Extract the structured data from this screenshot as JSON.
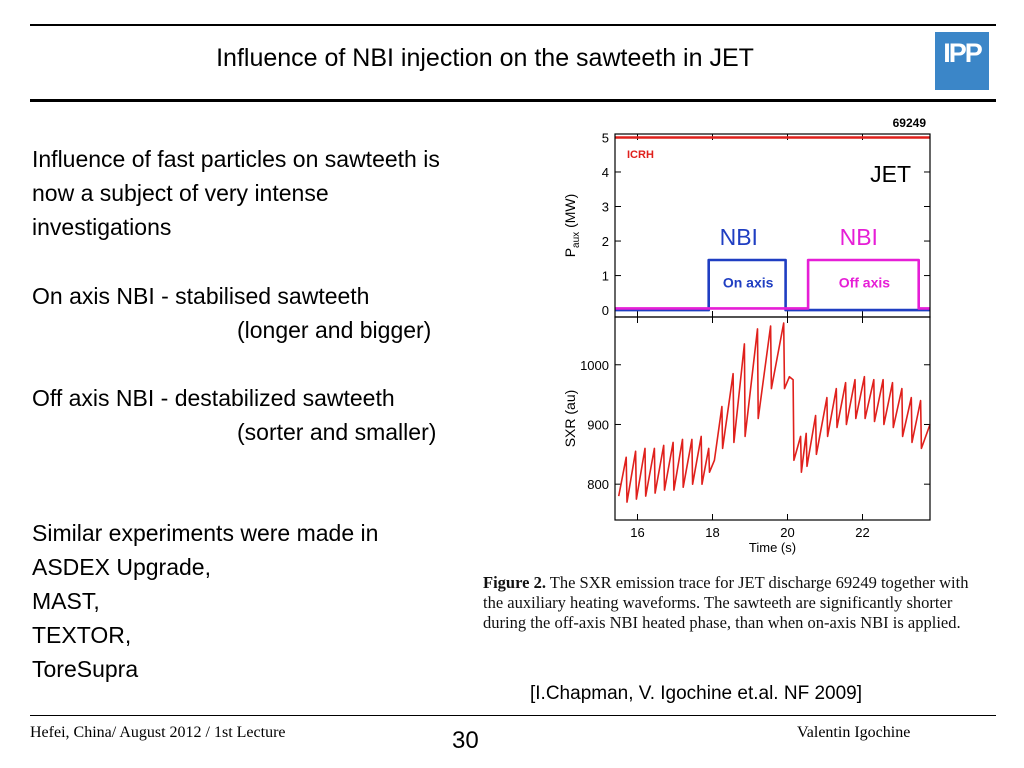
{
  "slide": {
    "title": "Influence of NBI injection on the sawteeth in JET",
    "logo_text": "IPP",
    "logo_color": "#3b86c8",
    "paragraphs": [
      [
        "Influence of fast particles on sawteeth is",
        "now a subject of very intense",
        "investigations"
      ],
      [
        "On axis NBI - stabilised sawteeth",
        "(longer and bigger)"
      ],
      [
        "Off axis NBI - destabilized sawteeth",
        "(sorter and smaller)"
      ],
      [
        "Similar experiments were made in",
        "ASDEX Upgrade,",
        "MAST,",
        "TEXTOR,",
        "ToreSupra"
      ]
    ],
    "caption_label": "Figure 2.",
    "caption_text": "The SXR emission trace for JET discharge 69249 together with the auxiliary heating waveforms. The sawteeth are significantly shorter during the off-axis NBI heated phase, than when on-axis NBI is applied.",
    "reference": "[I.Chapman, V. Igochine et.al. NF 2009]",
    "footer_left": "Hefei, China/ August 2012 / 1st Lecture",
    "page_number": "30",
    "footer_right": "Valentin Igochine"
  },
  "chart_data": {
    "type": "line",
    "shot_number": "69249",
    "device_label": "JET",
    "xlabel": "Time (s)",
    "xlim": [
      15.4,
      23.8
    ],
    "xticks": [
      16,
      18,
      20,
      22
    ],
    "panels": [
      {
        "ylabel_main": "P",
        "ylabel_sub": "aux",
        "ylabel_unit": " (MW)",
        "ylim": [
          -0.2,
          5.1
        ],
        "yticks": [
          0,
          1,
          2,
          3,
          4,
          5
        ],
        "series": [
          {
            "name": "ICRH",
            "color": "#e0201c",
            "x": [
              15.4,
              23.8
            ],
            "y": [
              5.0,
              5.0
            ]
          },
          {
            "name": "NBI",
            "color": "#1f3ec2",
            "x": [
              15.4,
              17.9,
              17.9,
              19.95,
              19.95,
              23.8
            ],
            "y": [
              0,
              0,
              1.45,
              1.45,
              0,
              0
            ]
          },
          {
            "name": "NBI",
            "color": "#e61ed6",
            "x": [
              15.4,
              20.55,
              20.55,
              23.5,
              23.5,
              23.8
            ],
            "y": [
              0.05,
              0.05,
              1.45,
              1.45,
              0.05,
              0.05
            ]
          }
        ],
        "annotations": [
          {
            "text": "On axis",
            "x": 18.95,
            "y": 0.8,
            "color": "#1f3ec2"
          },
          {
            "text": "Off axis",
            "x": 22.05,
            "y": 0.8,
            "color": "#e61ed6"
          }
        ]
      },
      {
        "ylabel_main": "SXR (au)",
        "ylim": [
          740,
          1080
        ],
        "yticks": [
          800,
          900,
          1000
        ],
        "series": [
          {
            "name": "SXR",
            "color": "#e0201c",
            "x": [
              15.5,
              15.7,
              15.72,
              15.95,
              15.97,
              16.2,
              16.22,
              16.45,
              16.47,
              16.7,
              16.72,
              16.95,
              16.97,
              17.2,
              17.22,
              17.45,
              17.47,
              17.7,
              17.72,
              17.9,
              17.92,
              18.05,
              18.25,
              18.27,
              18.55,
              18.57,
              18.85,
              18.87,
              19.2,
              19.22,
              19.55,
              19.57,
              19.9,
              19.92,
              20.05,
              20.15,
              20.17,
              20.35,
              20.37,
              20.5,
              20.52,
              20.75,
              20.77,
              21.05,
              21.07,
              21.3,
              21.32,
              21.55,
              21.57,
              21.8,
              21.82,
              22.05,
              22.07,
              22.3,
              22.32,
              22.55,
              22.57,
              22.8,
              22.82,
              23.05,
              23.07,
              23.3,
              23.32,
              23.55,
              23.57,
              23.8
            ],
            "y": [
              780,
              845,
              770,
              855,
              775,
              860,
              780,
              860,
              785,
              865,
              790,
              870,
              790,
              875,
              795,
              875,
              800,
              880,
              800,
              860,
              820,
              840,
              930,
              860,
              985,
              870,
              1035,
              880,
              1060,
              910,
              1065,
              960,
              1070,
              960,
              980,
              975,
              840,
              880,
              820,
              885,
              830,
              915,
              850,
              945,
              880,
              960,
              895,
              970,
              900,
              975,
              910,
              980,
              910,
              975,
              905,
              975,
              900,
              970,
              895,
              960,
              880,
              945,
              870,
              940,
              860,
              900
            ]
          }
        ]
      }
    ]
  }
}
